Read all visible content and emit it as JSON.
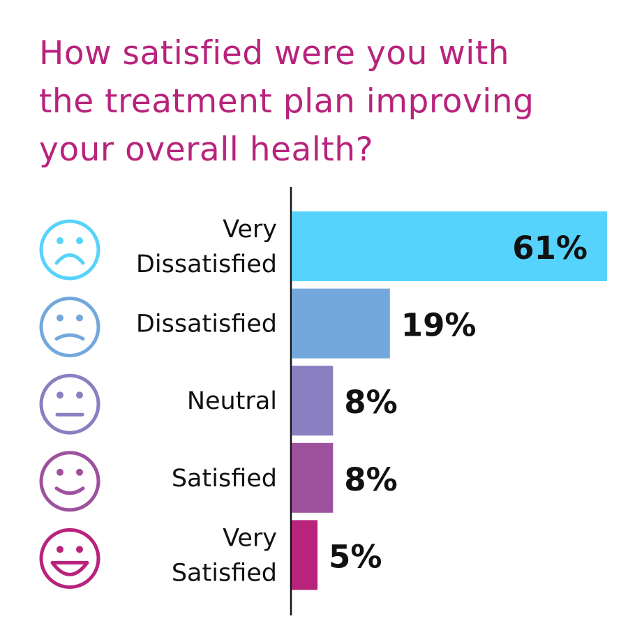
{
  "chart_data": {
    "type": "bar",
    "orientation": "horizontal",
    "title_lines": [
      "How satisfied were you with",
      "the treatment plan improving",
      "your overall health?"
    ],
    "categories": [
      [
        "Very",
        "Dissatisfied"
      ],
      [
        "Dissatisfied"
      ],
      [
        "Neutral"
      ],
      [
        "Satisfied"
      ],
      [
        "Very",
        "Satisfied"
      ]
    ],
    "icons": [
      "very-sad-face-icon",
      "sad-face-icon",
      "neutral-face-icon",
      "smile-face-icon",
      "big-smile-face-icon"
    ],
    "values": [
      61,
      19,
      8,
      8,
      5
    ],
    "value_labels": [
      "61%",
      "19%",
      "8%",
      "8%",
      "5%"
    ],
    "colors": [
      "#56d3fd",
      "#73a8dc",
      "#8a7fc0",
      "#9e519d",
      "#b8237c"
    ],
    "title_color": "#b8237c",
    "xlim": [
      0,
      61
    ],
    "grid": false
  }
}
